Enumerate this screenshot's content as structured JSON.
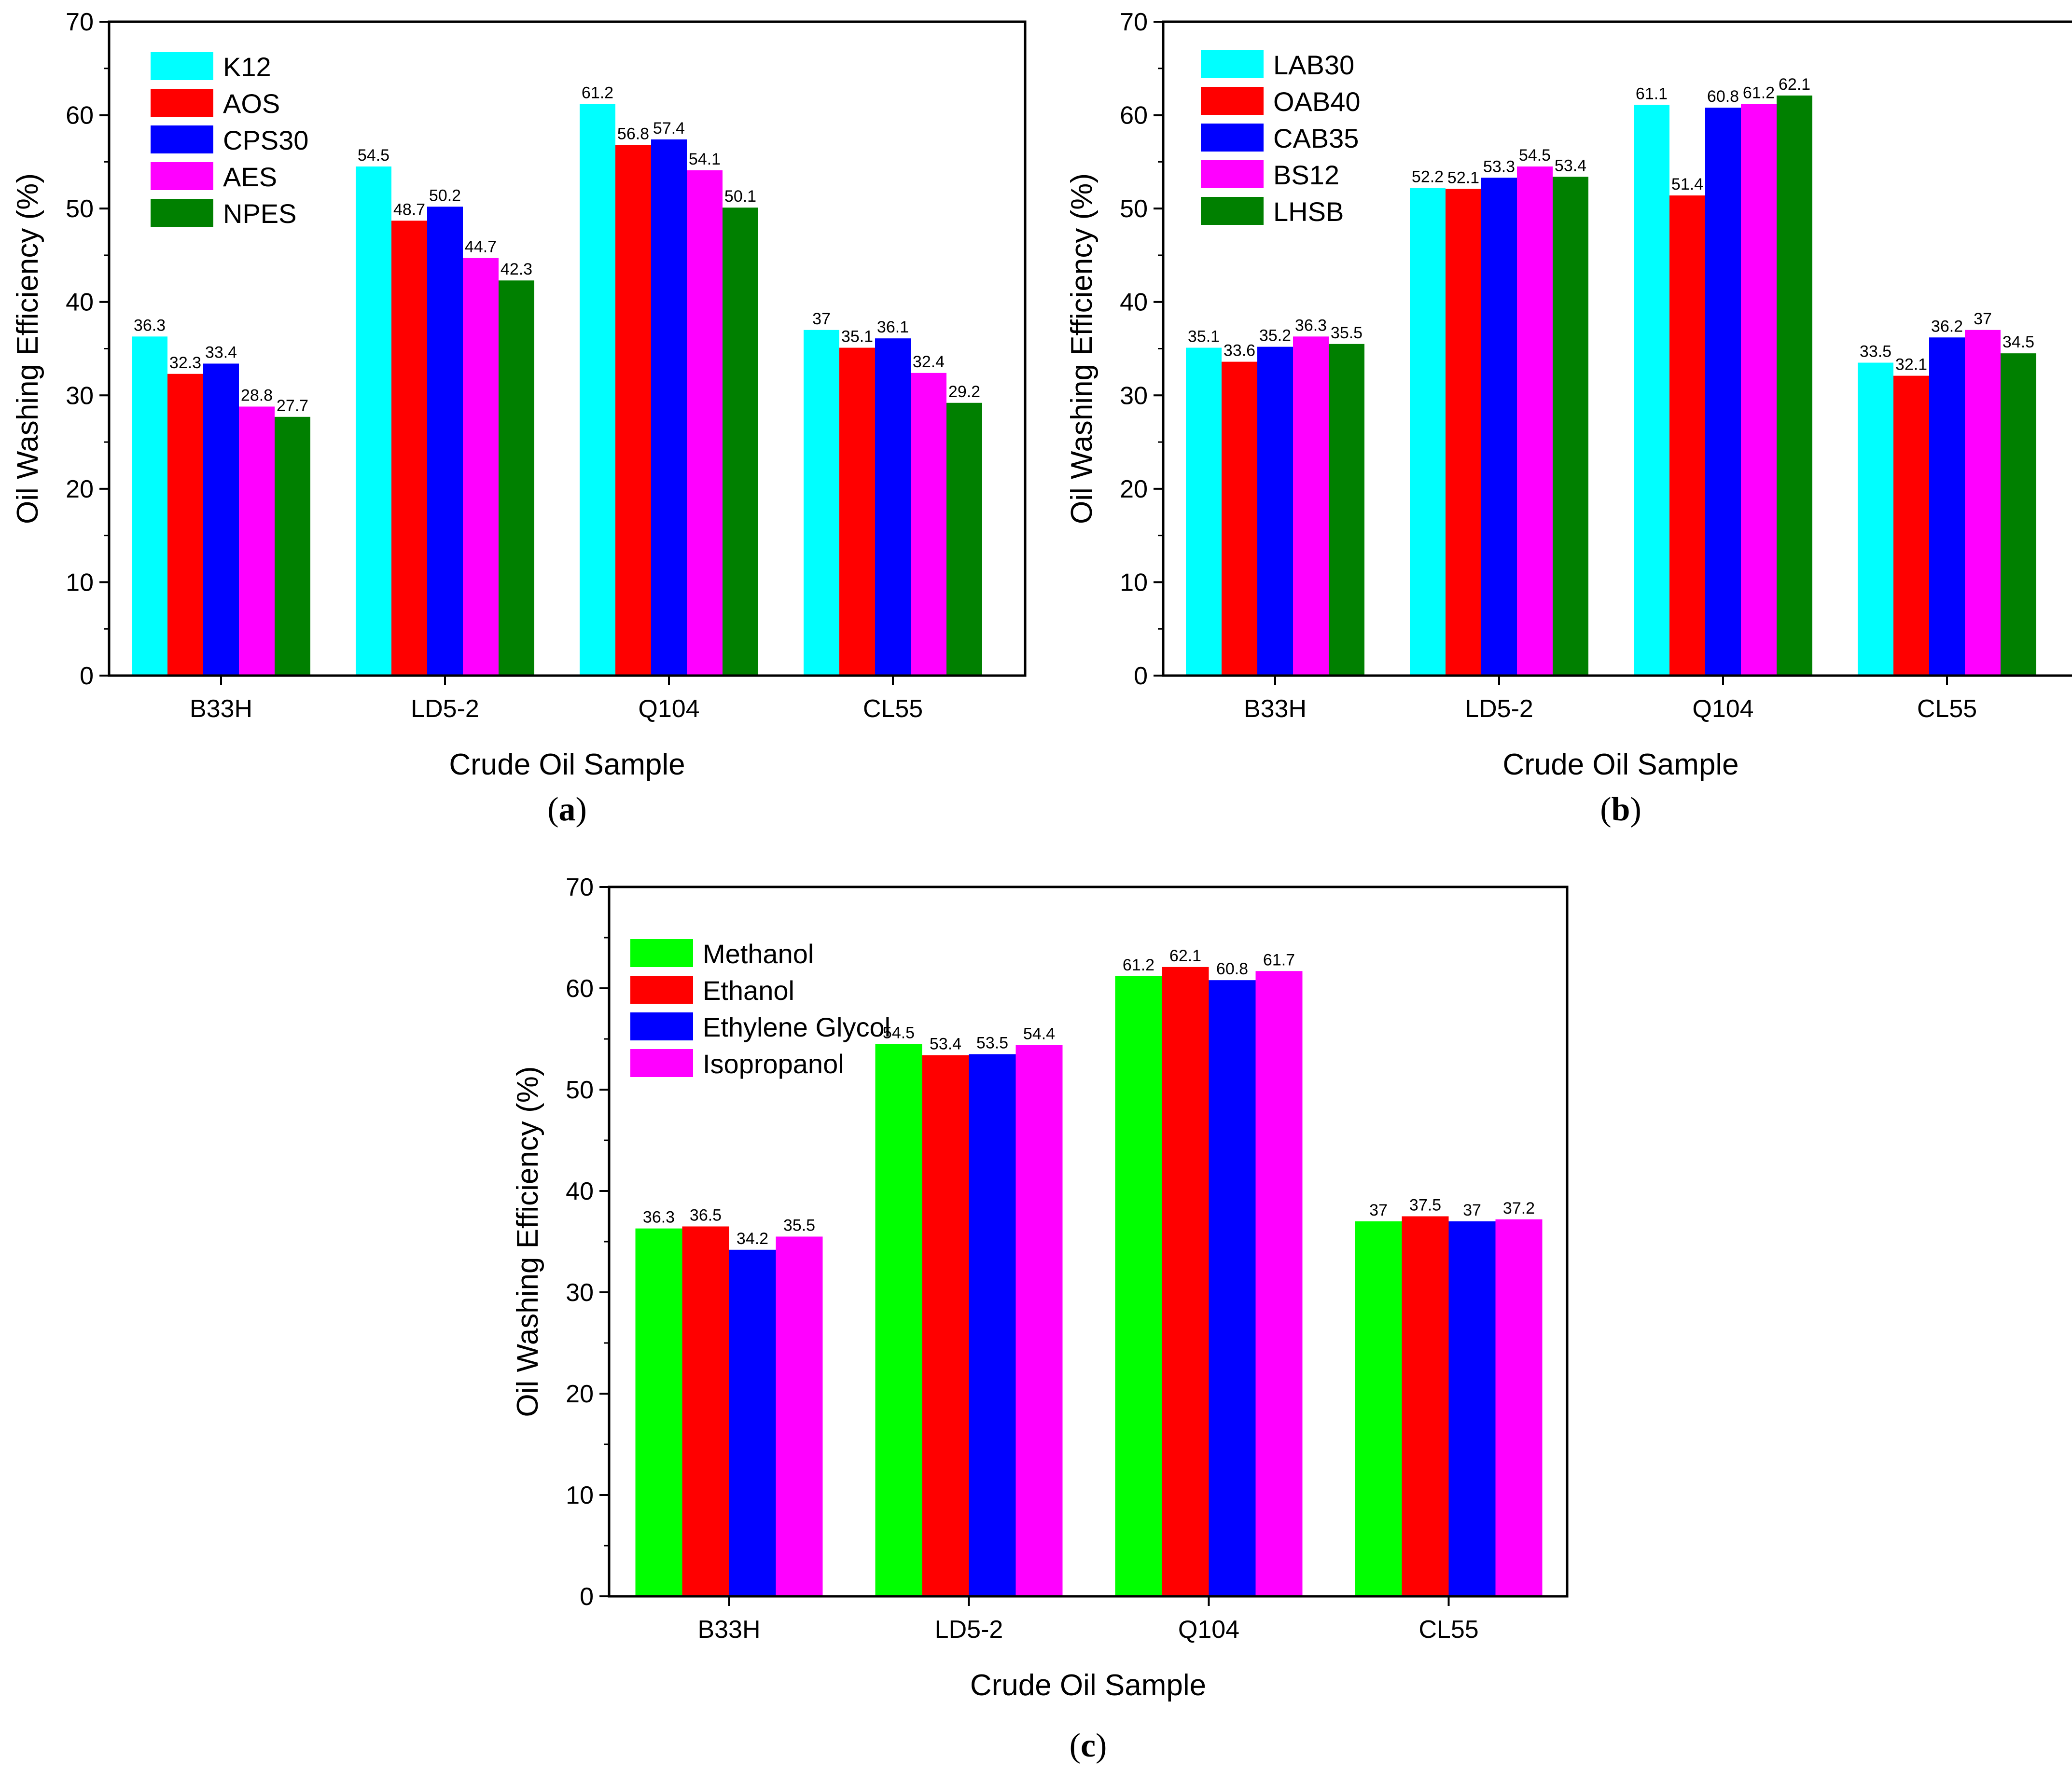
{
  "chart_data": [
    {
      "type": "bar",
      "panel_label": "a",
      "categories": [
        "B33H",
        "LD5-2",
        "Q104",
        "CL55"
      ],
      "series": [
        {
          "name": "K12",
          "color": "#00ffff",
          "values": [
            36.3,
            54.5,
            61.2,
            37
          ]
        },
        {
          "name": "AOS",
          "color": "#ff0000",
          "values": [
            32.3,
            48.7,
            56.8,
            35.1
          ]
        },
        {
          "name": "CPS30",
          "color": "#0000ff",
          "values": [
            33.4,
            50.2,
            57.4,
            36.1
          ]
        },
        {
          "name": "AES",
          "color": "#ff00ff",
          "values": [
            28.8,
            44.7,
            54.1,
            32.4
          ]
        },
        {
          "name": "NPES",
          "color": "#008000",
          "values": [
            27.7,
            42.3,
            50.1,
            29.2
          ]
        }
      ],
      "xlabel": "Crude Oil Sample",
      "ylabel": "Oil Washing Efficiency (%)",
      "ylim": [
        0,
        70
      ],
      "yticks": [
        0,
        10,
        20,
        30,
        40,
        50,
        60,
        70
      ],
      "legend": "top-left",
      "grid": false
    },
    {
      "type": "bar",
      "panel_label": "b",
      "categories": [
        "B33H",
        "LD5-2",
        "Q104",
        "CL55"
      ],
      "series": [
        {
          "name": "LAB30",
          "color": "#00ffff",
          "values": [
            35.1,
            52.2,
            61.1,
            33.5
          ]
        },
        {
          "name": "OAB40",
          "color": "#ff0000",
          "values": [
            33.6,
            52.1,
            51.4,
            32.1
          ]
        },
        {
          "name": "CAB35",
          "color": "#0000ff",
          "values": [
            35.2,
            53.3,
            60.8,
            36.2
          ]
        },
        {
          "name": "BS12",
          "color": "#ff00ff",
          "values": [
            36.3,
            54.5,
            61.2,
            37
          ]
        },
        {
          "name": "LHSB",
          "color": "#008000",
          "values": [
            35.5,
            53.4,
            62.1,
            34.5
          ]
        }
      ],
      "xlabel": "Crude Oil Sample",
      "ylabel": "Oil Washing Efficiency (%)",
      "ylim": [
        0,
        70
      ],
      "yticks": [
        0,
        10,
        20,
        30,
        40,
        50,
        60,
        70
      ],
      "legend": "top-left",
      "grid": false
    },
    {
      "type": "bar",
      "panel_label": "c",
      "categories": [
        "B33H",
        "LD5-2",
        "Q104",
        "CL55"
      ],
      "series": [
        {
          "name": "Methanol",
          "color": "#00ff00",
          "values": [
            36.3,
            54.5,
            61.2,
            37
          ]
        },
        {
          "name": "Ethanol",
          "color": "#ff0000",
          "values": [
            36.5,
            53.4,
            62.1,
            37.5
          ]
        },
        {
          "name": "Ethylene Glycol",
          "color": "#0000ff",
          "values": [
            34.2,
            53.5,
            60.8,
            37
          ]
        },
        {
          "name": "Isopropanol",
          "color": "#ff00ff",
          "values": [
            35.5,
            54.4,
            61.7,
            37.2
          ]
        }
      ],
      "xlabel": "Crude Oil Sample",
      "ylabel": "Oil Washing Efficiency (%)",
      "ylim": [
        0,
        70
      ],
      "yticks": [
        0,
        10,
        20,
        30,
        40,
        50,
        60,
        70
      ],
      "legend": "top-left",
      "grid": false
    }
  ]
}
